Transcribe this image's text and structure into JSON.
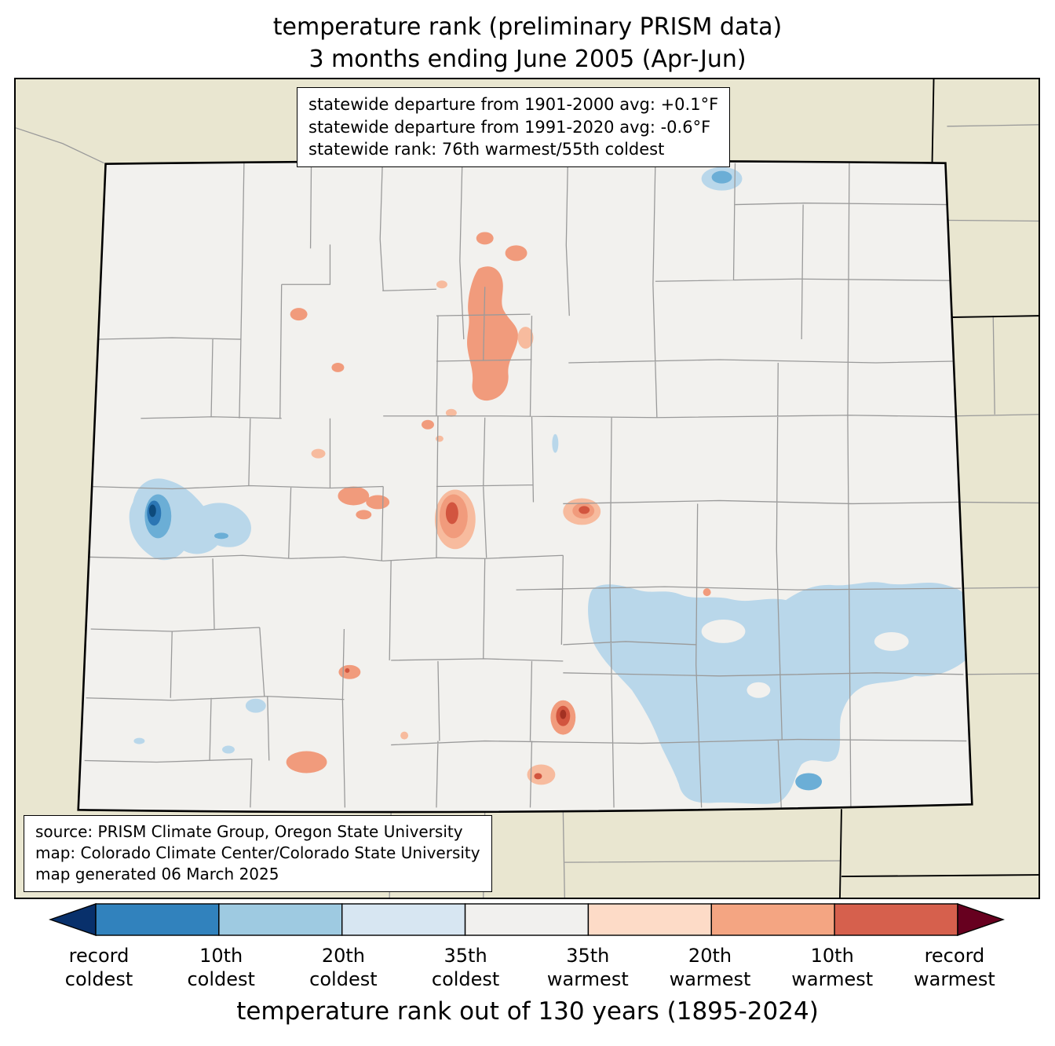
{
  "title": {
    "line1": "temperature rank (preliminary PRISM data)",
    "line2": "3 months ending June 2005 (Apr-Jun)"
  },
  "stats_box": {
    "lines": [
      "statewide departure from 1901-2000 avg: +0.1°F",
      "statewide departure from 1991-2020 avg: -0.6°F",
      "statewide rank: 76th warmest/55th coldest"
    ]
  },
  "source_box": {
    "lines": [
      "source: PRISM Climate Group, Oregon State University",
      "map: Colorado Climate Center/Colorado State University",
      "map generated 06 March 2025"
    ]
  },
  "colorbar": {
    "axis_label": "temperature rank out of 130 years (1895-2024)",
    "segment_colors": [
      "#3182bd",
      "#9ecae1",
      "#d7e6f2",
      "#f1f0ee",
      "#fddbc7",
      "#f4a582",
      "#d6604d"
    ],
    "labels": [
      {
        "line1": "record",
        "line2": "coldest"
      },
      {
        "line1": "10th",
        "line2": "coldest"
      },
      {
        "line1": "20th",
        "line2": "coldest"
      },
      {
        "line1": "35th",
        "line2": "coldest"
      },
      {
        "line1": "35th",
        "line2": "warmest"
      },
      {
        "line1": "20th",
        "line2": "warmest"
      },
      {
        "line1": "10th",
        "line2": "warmest"
      },
      {
        "line1": "record",
        "line2": "warmest"
      }
    ]
  },
  "colors": {
    "outside": "#e9e6d0",
    "state_fill": "#f2f1ee",
    "county_line": "#9a9a9a",
    "cold_light": "#b9d7ea",
    "cold_mid": "#6baed6",
    "cold_dark": "#2b76b4",
    "cold_navy": "#0d4a7c",
    "warm_light": "#f7bb9e",
    "warm_mid": "#f19b7c",
    "warm_dark": "#d2553f",
    "warm_deep": "#a33122",
    "arrow_cold": "#08306b",
    "arrow_warm": "#67001f"
  }
}
